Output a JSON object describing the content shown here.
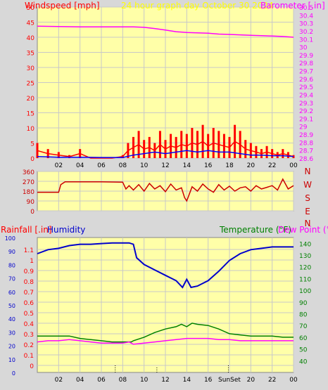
{
  "colors": {
    "background": "#d8d8d8",
    "plot_bg": "#ffffa8",
    "grid": "#c8c8c8",
    "windspeed": "#ff0000",
    "gust": "#ff0000",
    "avg_wind": "#0000ff",
    "barometer": "#ff00ff",
    "title": "#ffff00",
    "direction": "#cc0000",
    "rainfall": "#ff0000",
    "humidity": "#0000cc",
    "temperature": "#008000",
    "dewpoint": "#ff00ff",
    "tick": "#000000"
  },
  "header": {
    "title": "24 hour graph day   October 30 2024"
  },
  "chart_data": [
    {
      "type": "line",
      "name": "wind-barometer",
      "ylabel_left": "Windspeed [mph]",
      "ylabel_right": "Barometer [.in]",
      "ylim_left": [
        0,
        50
      ],
      "yticks_left": [
        "50",
        "45",
        "40",
        "35",
        "30",
        "25",
        "20",
        "15",
        "10",
        "5",
        "0"
      ],
      "ylim_right": [
        28.6,
        30.5
      ],
      "yticks_right": [
        "30.5",
        "30.4",
        "30.3",
        "30.2",
        "30.1",
        "30",
        "29.9",
        "29.8",
        "29.7",
        "29.6",
        "29.5",
        "29.4",
        "29.3",
        "29.2",
        "29.1",
        "29",
        "28.9",
        "28.8",
        "28.7",
        "28.6"
      ],
      "xticks": [
        "02",
        "04",
        "06",
        "08",
        "10",
        "12",
        "14",
        "16",
        "18",
        "20",
        "22",
        "00"
      ],
      "xlim": [
        0,
        24
      ],
      "series": [
        {
          "kind": "barometer",
          "x": [
            0,
            2,
            4,
            6,
            8,
            9,
            10,
            11,
            12,
            13,
            14,
            15,
            16,
            17,
            18,
            19,
            20,
            21,
            22,
            23,
            24
          ],
          "y": [
            30.26,
            30.255,
            30.25,
            30.25,
            30.25,
            30.25,
            30.245,
            30.23,
            30.21,
            30.19,
            30.18,
            30.175,
            30.17,
            30.16,
            30.155,
            30.15,
            30.145,
            30.14,
            30.135,
            30.13,
            30.12
          ]
        },
        {
          "kind": "gust",
          "x": [
            0,
            1,
            2,
            3,
            4,
            5,
            6,
            7,
            8,
            8.5,
            9,
            9.5,
            10,
            10.5,
            11,
            11.5,
            12,
            12.5,
            13,
            13.5,
            14,
            14.5,
            15,
            15.5,
            16,
            16.5,
            17,
            17.5,
            18,
            18.5,
            19,
            19.5,
            20,
            20.5,
            21,
            21.5,
            22,
            22.5,
            23,
            23.5,
            24
          ],
          "y": [
            5,
            3,
            2,
            1,
            3,
            0,
            0,
            0,
            1,
            5,
            7,
            9,
            6,
            7,
            5,
            9,
            6,
            8,
            7,
            9,
            8,
            10,
            9,
            11,
            8,
            10,
            9,
            8,
            7,
            11,
            9,
            6,
            5,
            4,
            3,
            4,
            3,
            2,
            3,
            2,
            1
          ]
        },
        {
          "kind": "avg",
          "x": [
            0,
            2,
            4,
            6,
            8,
            9,
            10,
            11,
            12,
            13,
            14,
            15,
            16,
            17,
            18,
            19,
            20,
            21,
            22,
            23,
            24
          ],
          "y": [
            0.5,
            0.3,
            0.3,
            0.2,
            0.2,
            1,
            1.5,
            2,
            1.5,
            2,
            2.5,
            2,
            2.5,
            2,
            2,
            1.5,
            1,
            1,
            0.8,
            0.8,
            0.5
          ]
        }
      ]
    },
    {
      "type": "line",
      "name": "wind-direction",
      "ylim": [
        0,
        360
      ],
      "yticks": [
        "360",
        "270",
        "180",
        "90",
        "0"
      ],
      "compass": [
        "N",
        "W",
        "S",
        "E",
        "N"
      ],
      "xlim": [
        0,
        24
      ],
      "x": [
        0,
        2,
        2.2,
        2.6,
        4,
        6,
        8,
        8.3,
        8.6,
        9,
        9.5,
        10,
        10.5,
        11,
        11.5,
        12,
        12.5,
        13,
        13.5,
        13.8,
        14,
        14.5,
        15,
        15.5,
        16,
        16.5,
        17,
        17.5,
        18,
        18.5,
        19,
        19.5,
        20,
        20.5,
        21,
        21.5,
        22,
        22.5,
        23,
        23.5,
        24
      ],
      "y": [
        170,
        170,
        240,
        265,
        265,
        265,
        262,
        200,
        230,
        190,
        240,
        180,
        250,
        200,
        230,
        175,
        245,
        190,
        210,
        120,
        90,
        220,
        180,
        245,
        200,
        170,
        240,
        190,
        225,
        180,
        210,
        220,
        180,
        230,
        200,
        215,
        230,
        190,
        290,
        200,
        230
      ]
    },
    {
      "type": "line",
      "name": "rain-humidity-temperature",
      "ylabel_left": "Rainfall [.in]",
      "ylabel_left2": "Humidity",
      "ylabel_right": "Temperature (°F)",
      "ylabel_right2": "Dew Point (°F)",
      "humidity_ticks": [
        "100",
        "90",
        "80",
        "70",
        "60",
        "50",
        "40",
        "30",
        "20",
        "10",
        "0"
      ],
      "rain_ticks": [
        "1.1",
        "1",
        "0.9",
        "0.8",
        "0.7",
        "0.6",
        "0.5",
        "0.4",
        "0.3",
        "0.2",
        "0.1",
        "0"
      ],
      "temp_ticks": [
        "140",
        "130",
        "120",
        "110",
        "100",
        "90",
        "80",
        "70",
        "60",
        "50",
        "40"
      ],
      "xticks": [
        "02",
        "04",
        "06",
        "08",
        "10",
        "12",
        "14",
        "16",
        "SunSet",
        "20",
        "22",
        "00"
      ],
      "xlim": [
        0,
        24
      ],
      "humidity_lim": [
        0,
        100
      ],
      "temp_lim": [
        30,
        145
      ],
      "series": [
        {
          "kind": "humidity",
          "x": [
            0,
            1,
            2,
            3,
            4,
            5,
            6,
            7,
            8,
            8.6,
            9,
            9.3,
            10,
            11,
            12,
            13,
            13.6,
            14,
            14.4,
            15,
            16,
            17,
            18,
            19,
            20,
            21,
            22,
            23,
            24
          ],
          "y": [
            88,
            91,
            92,
            94,
            95,
            95,
            95.5,
            96,
            96,
            96,
            95,
            85,
            80,
            76,
            72,
            68,
            63,
            69,
            63,
            64,
            68,
            75,
            83,
            88,
            91,
            92,
            93,
            93,
            93
          ]
        },
        {
          "kind": "temperature",
          "x": [
            0,
            1,
            2,
            3,
            4,
            5,
            6,
            7,
            8,
            8.8,
            9,
            10,
            11,
            12,
            13,
            13.5,
            14,
            14.5,
            15,
            16,
            17,
            18,
            19,
            20,
            21,
            22,
            23,
            24
          ],
          "y": [
            61,
            61,
            61,
            61,
            59,
            58,
            57,
            56,
            56,
            56,
            57,
            60,
            64,
            67,
            69,
            71,
            69,
            72,
            71,
            70,
            67,
            63,
            62,
            61,
            61,
            61,
            60,
            60
          ]
        },
        {
          "kind": "dewpoint",
          "x": [
            0,
            1,
            2,
            3,
            4,
            5,
            6,
            7,
            8,
            8.6,
            9,
            10,
            11,
            12,
            13,
            14,
            15,
            16,
            17,
            18,
            19,
            20,
            21,
            22,
            23,
            24
          ],
          "y": [
            56,
            57,
            57,
            58,
            57,
            56,
            55,
            55,
            55,
            56,
            54,
            55,
            56,
            57,
            58,
            59,
            59,
            59,
            58,
            58,
            57,
            57,
            57,
            57,
            57,
            57
          ]
        },
        {
          "kind": "markers",
          "x": [
            7.3,
            11.2,
            17.9
          ],
          "y": [
            6,
            4,
            6
          ]
        }
      ]
    }
  ]
}
